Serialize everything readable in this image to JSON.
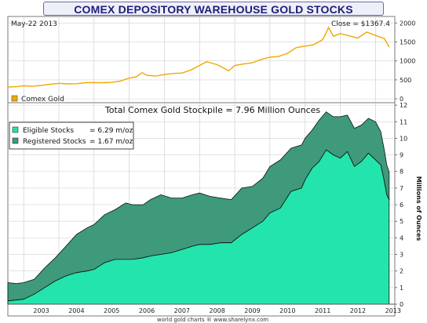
{
  "header": {
    "title": "COMEX DEPOSITORY WAREHOUSE GOLD STOCKS",
    "footer": "world gold charts ® www.sharelynx.com"
  },
  "chart_data": [
    {
      "type": "line",
      "name": "price-panel",
      "date_label": "May-22  2013",
      "close_label": "Close = $1367.4",
      "legend": [
        {
          "name": "Comex Gold",
          "color": "#f0a800"
        }
      ],
      "yticks": [
        0,
        500,
        1000,
        1500,
        2000
      ],
      "ylim": [
        -80,
        2150
      ],
      "x": [
        2002.55,
        2002.8,
        2003.0,
        2003.25,
        2003.5,
        2003.75,
        2004.0,
        2004.25,
        2004.5,
        2004.75,
        2005.0,
        2005.25,
        2005.5,
        2005.75,
        2006.0,
        2006.2,
        2006.37,
        2006.5,
        2006.75,
        2007.0,
        2007.25,
        2007.5,
        2007.75,
        2008.0,
        2008.2,
        2008.5,
        2008.83,
        2009.0,
        2009.25,
        2009.5,
        2009.75,
        2010.0,
        2010.25,
        2010.5,
        2010.75,
        2011.0,
        2011.25,
        2011.5,
        2011.67,
        2011.8,
        2012.0,
        2012.25,
        2012.5,
        2012.75,
        2013.0,
        2013.25,
        2013.39
      ],
      "values": [
        310,
        320,
        345,
        330,
        355,
        385,
        410,
        395,
        400,
        425,
        430,
        425,
        435,
        470,
        550,
        580,
        690,
        620,
        600,
        640,
        670,
        680,
        760,
        880,
        980,
        900,
        740,
        880,
        920,
        950,
        1040,
        1100,
        1120,
        1200,
        1350,
        1390,
        1430,
        1560,
        1880,
        1650,
        1720,
        1660,
        1600,
        1760,
        1670,
        1590,
        1367.4
      ]
    },
    {
      "type": "area",
      "name": "stocks-panel",
      "title": "Total Comex Gold Stockpile = 7.96 Million Ounces",
      "ylabel": "Millions of Ounces",
      "yticks": [
        0,
        1,
        2,
        3,
        4,
        5,
        6,
        7,
        8,
        9,
        10,
        11,
        12
      ],
      "ylim": [
        0,
        12.1
      ],
      "xticks": [
        "2003",
        "2004",
        "2005",
        "2006",
        "2007",
        "2008",
        "2009",
        "2010",
        "2011",
        "2012",
        "2013"
      ],
      "xlim": [
        2002.55,
        2013.55
      ],
      "legend": [
        {
          "name": "Eligible Stocks",
          "value": "= 6.29 m/oz",
          "color": "#24e4ad"
        },
        {
          "name": "Registered Stocks",
          "value": "= 1.67 m/oz",
          "color": "#3e9a7a"
        }
      ],
      "x": [
        2002.55,
        2002.8,
        2003.0,
        2003.3,
        2003.6,
        2003.9,
        2004.2,
        2004.5,
        2004.8,
        2005.0,
        2005.3,
        2005.6,
        2005.9,
        2006.1,
        2006.4,
        2006.6,
        2006.9,
        2007.2,
        2007.5,
        2007.8,
        2008.0,
        2008.3,
        2008.6,
        2008.9,
        2009.2,
        2009.5,
        2009.8,
        2010.0,
        2010.3,
        2010.6,
        2010.9,
        2011.0,
        2011.2,
        2011.4,
        2011.6,
        2011.8,
        2012.0,
        2012.2,
        2012.4,
        2012.6,
        2012.8,
        2013.0,
        2013.15,
        2013.25,
        2013.32,
        2013.39
      ],
      "series": [
        {
          "name": "Eligible Stocks",
          "values": [
            0.2,
            0.25,
            0.3,
            0.6,
            1.0,
            1.4,
            1.7,
            1.9,
            2.0,
            2.1,
            2.5,
            2.7,
            2.7,
            2.7,
            2.8,
            2.9,
            3.0,
            3.1,
            3.3,
            3.5,
            3.6,
            3.6,
            3.7,
            3.7,
            4.2,
            4.6,
            5.0,
            5.5,
            5.8,
            6.8,
            7.0,
            7.5,
            8.2,
            8.6,
            9.3,
            9.0,
            8.8,
            9.2,
            8.3,
            8.6,
            9.1,
            8.7,
            8.4,
            7.4,
            6.6,
            6.29
          ]
        },
        {
          "name": "Registered Stocks",
          "values": [
            1.1,
            1.0,
            1.0,
            0.9,
            1.2,
            1.4,
            1.8,
            2.3,
            2.6,
            2.7,
            2.9,
            3.0,
            3.4,
            3.3,
            3.2,
            3.4,
            3.6,
            3.3,
            3.1,
            3.1,
            3.1,
            2.9,
            2.7,
            2.6,
            2.8,
            2.5,
            2.6,
            2.8,
            2.9,
            2.6,
            2.6,
            2.5,
            2.3,
            2.5,
            2.3,
            2.3,
            2.5,
            2.2,
            2.3,
            2.2,
            2.1,
            2.3,
            2.0,
            1.9,
            1.8,
            1.67
          ]
        }
      ]
    }
  ]
}
